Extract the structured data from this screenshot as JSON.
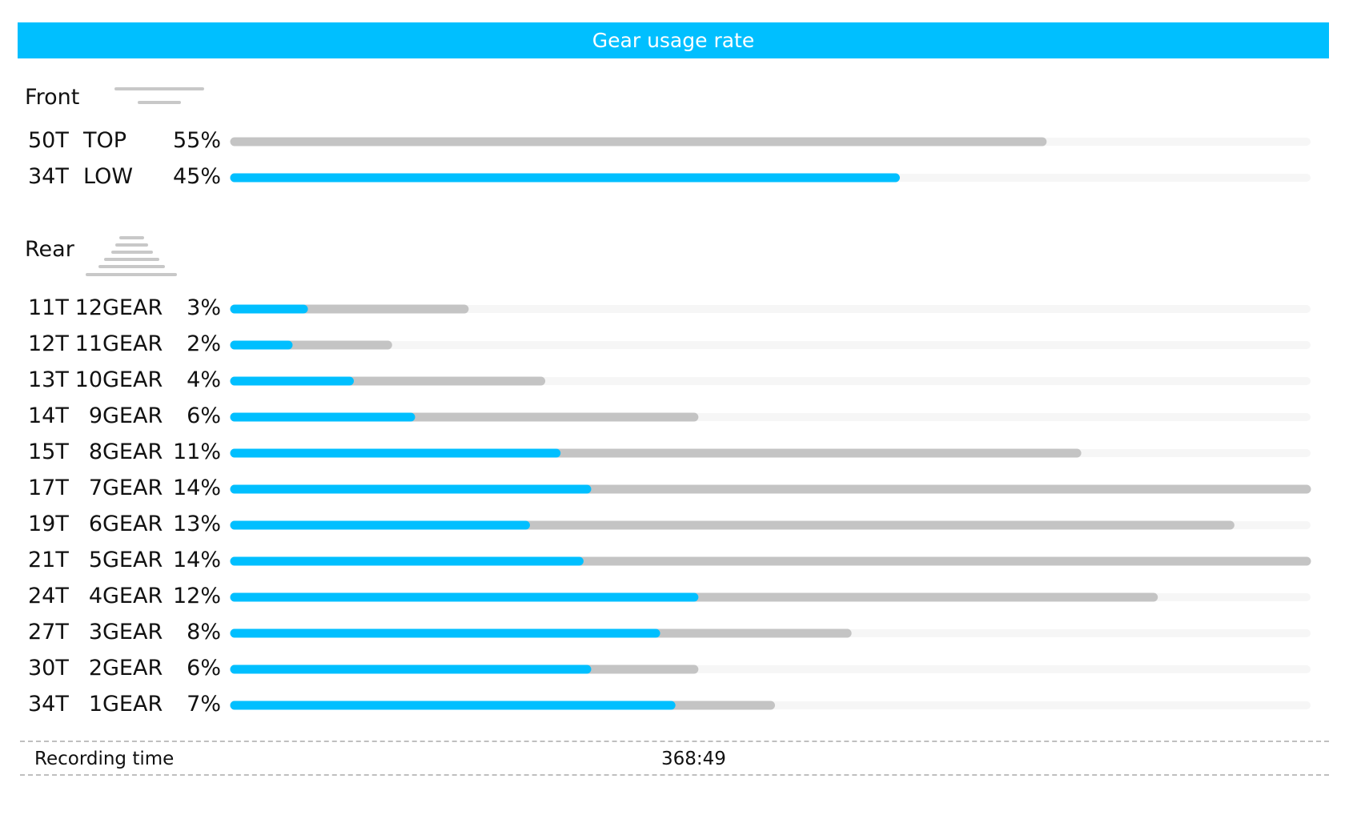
{
  "title": "Gear usage rate",
  "front": {
    "label": "Front",
    "icon": "front-chainring-icon",
    "rows": [
      {
        "teeth": "50T",
        "gear": "TOP",
        "percent": "55%",
        "gray": 55,
        "blue": 0
      },
      {
        "teeth": "34T",
        "gear": "LOW",
        "percent": "45%",
        "gray": 45,
        "blue": 45
      }
    ]
  },
  "rear": {
    "label": "Rear",
    "icon": "rear-cassette-icon",
    "rows": [
      {
        "teeth": "11T",
        "num": "12",
        "gear": "GEAR",
        "percent": "3%",
        "gray": 3,
        "blue": 0.9
      },
      {
        "teeth": "12T",
        "num": "11",
        "gear": "GEAR",
        "percent": "2%",
        "gray": 2,
        "blue": 0.7
      },
      {
        "teeth": "13T",
        "num": "10",
        "gear": "GEAR",
        "percent": "4%",
        "gray": 4,
        "blue": 1.5
      },
      {
        "teeth": "14T",
        "num": "9",
        "gear": "GEAR",
        "percent": "6%",
        "gray": 6,
        "blue": 2.3
      },
      {
        "teeth": "15T",
        "num": "8",
        "gear": "GEAR",
        "percent": "11%",
        "gray": 11,
        "blue": 4.2
      },
      {
        "teeth": "17T",
        "num": "7",
        "gear": "GEAR",
        "percent": "14%",
        "gray": 14,
        "blue": 4.6
      },
      {
        "teeth": "19T",
        "num": "6",
        "gear": "GEAR",
        "percent": "13%",
        "gray": 13,
        "blue": 3.8
      },
      {
        "teeth": "21T",
        "num": "5",
        "gear": "GEAR",
        "percent": "14%",
        "gray": 14,
        "blue": 4.5
      },
      {
        "teeth": "24T",
        "num": "4",
        "gear": "GEAR",
        "percent": "12%",
        "gray": 12,
        "blue": 6.0
      },
      {
        "teeth": "27T",
        "num": "3",
        "gear": "GEAR",
        "percent": "8%",
        "gray": 8,
        "blue": 5.5
      },
      {
        "teeth": "30T",
        "num": "2",
        "gear": "GEAR",
        "percent": "6%",
        "gray": 6,
        "blue": 4.6
      },
      {
        "teeth": "34T",
        "num": "1",
        "gear": "GEAR",
        "percent": "7%",
        "gray": 7,
        "blue": 5.7
      }
    ]
  },
  "footer": {
    "label": "Recording time",
    "value": "368:49"
  },
  "colors": {
    "accent": "#00bfff",
    "bar_gray": "#c4c4c4",
    "track": "#f6f6f6"
  },
  "chart_data": [
    {
      "type": "bar",
      "title": "Front",
      "categories": [
        "50T TOP",
        "34T LOW"
      ],
      "values": [
        55,
        45
      ],
      "ylim": [
        0,
        100
      ]
    },
    {
      "type": "bar",
      "title": "Rear",
      "categories": [
        "11T 12GEAR",
        "12T 11GEAR",
        "13T 10GEAR",
        "14T 9GEAR",
        "15T 8GEAR",
        "17T 7GEAR",
        "19T 6GEAR",
        "21T 5GEAR",
        "24T 4GEAR",
        "27T 3GEAR",
        "30T 2GEAR",
        "34T 1GEAR"
      ],
      "values": [
        3,
        2,
        4,
        6,
        11,
        14,
        13,
        14,
        12,
        8,
        6,
        7
      ],
      "ylim": [
        0,
        14
      ]
    }
  ]
}
